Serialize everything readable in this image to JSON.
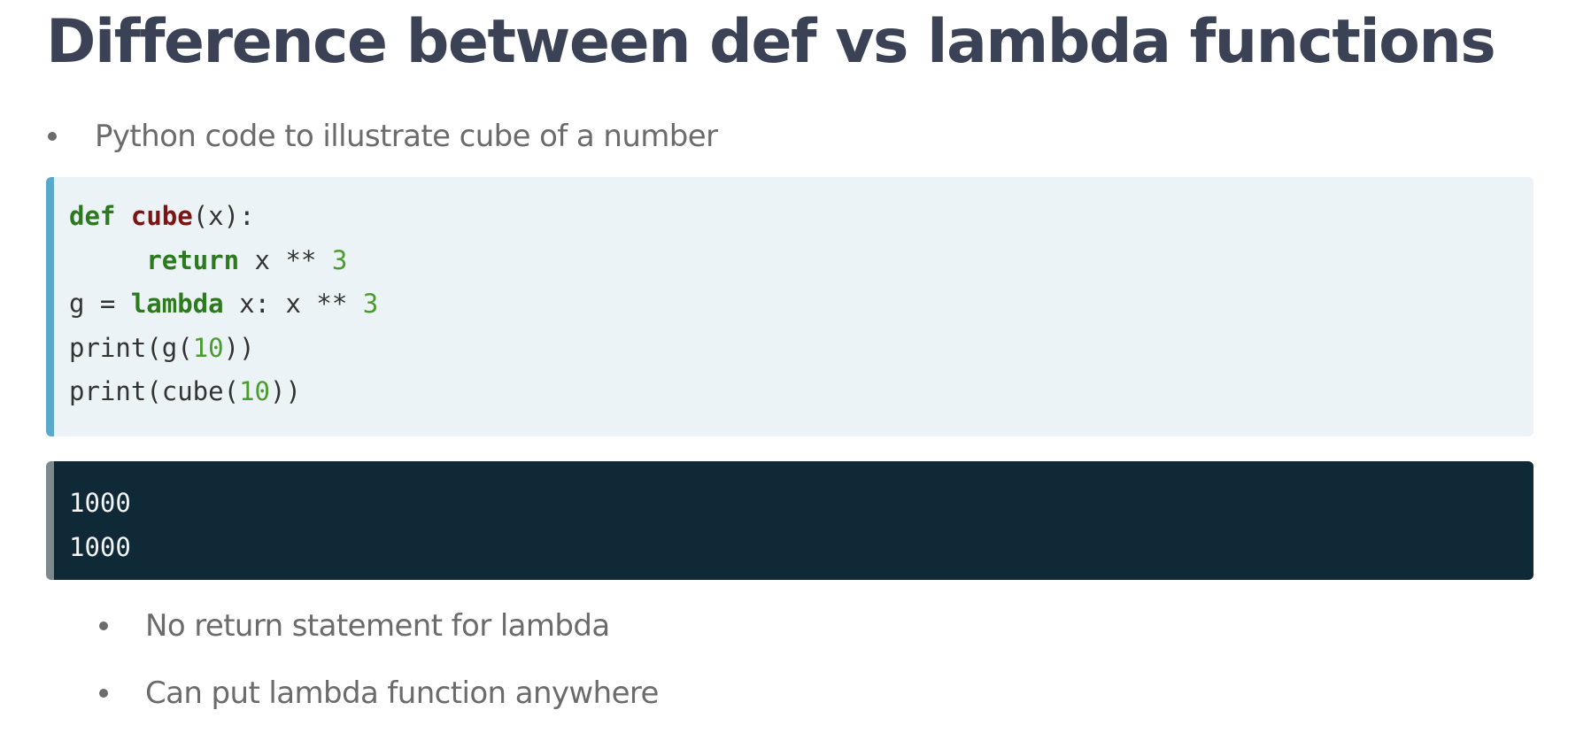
{
  "page": {
    "title": "Difference between def vs lambda functions",
    "intro_bullets": [
      {
        "text": "Python code to illustrate cube of a number"
      }
    ],
    "code_block": {
      "language": "python",
      "lines": [
        [
          {
            "t": "def",
            "c": "kw"
          },
          {
            "t": " "
          },
          {
            "t": "cube",
            "c": "fn"
          },
          {
            "t": "(x):"
          }
        ],
        [
          {
            "t": "     "
          },
          {
            "t": "return",
            "c": "kw"
          },
          {
            "t": " x ** "
          },
          {
            "t": "3",
            "c": "num"
          }
        ],
        [
          {
            "t": "g = "
          },
          {
            "t": "lambda",
            "c": "kw"
          },
          {
            "t": " x: x ** "
          },
          {
            "t": "3",
            "c": "num"
          }
        ],
        [
          {
            "t": "print(g("
          },
          {
            "t": "10",
            "c": "num"
          },
          {
            "t": "))"
          }
        ],
        [
          {
            "t": "print(cube("
          },
          {
            "t": "10",
            "c": "num"
          },
          {
            "t": "))"
          }
        ]
      ]
    },
    "output_block": {
      "lines": [
        "1000",
        "1000"
      ]
    },
    "sub_bullets": [
      {
        "text": "No return statement for lambda"
      },
      {
        "text": "Can put lambda function anywhere"
      }
    ],
    "colors": {
      "title": "#3c4256",
      "code_background": "#ebf3f7",
      "code_accent_border": "#58a9cc",
      "output_background": "#0f2a36",
      "keyword": "#2c7a1d",
      "function_name": "#7d1414",
      "number": "#4b9c2c"
    }
  }
}
